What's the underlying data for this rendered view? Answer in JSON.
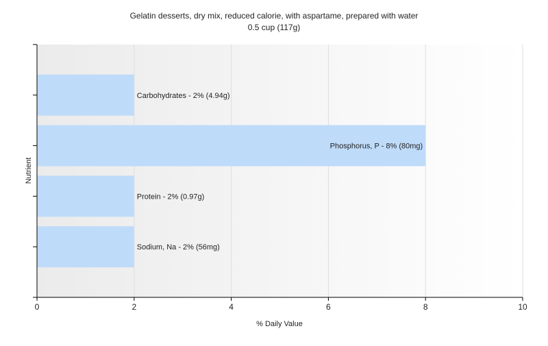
{
  "chart_data": {
    "type": "bar",
    "orientation": "horizontal",
    "title": "Gelatin desserts, dry mix, reduced calorie, with aspartame, prepared with water",
    "subtitle": "0.5 cup (117g)",
    "xlabel": "% Daily Value",
    "ylabel": "Nutrient",
    "xlim": [
      0,
      10
    ],
    "xticks": [
      "0",
      "2",
      "4",
      "6",
      "8",
      "10"
    ],
    "grid": true,
    "categories": [
      "Carbohydrates",
      "Phosphorus, P",
      "Protein",
      "Sodium, Na"
    ],
    "values": [
      2,
      8,
      2,
      2
    ],
    "bar_labels": [
      "Carbohydrates - 2% (4.94g)",
      "Phosphorus, P - 8% (80mg)",
      "Protein - 2% (0.97g)",
      "Sodium, Na - 2% (56mg)"
    ],
    "colors": {
      "bar": "#bfdbfa",
      "grid": "#dedede",
      "axis": "#000000"
    }
  }
}
